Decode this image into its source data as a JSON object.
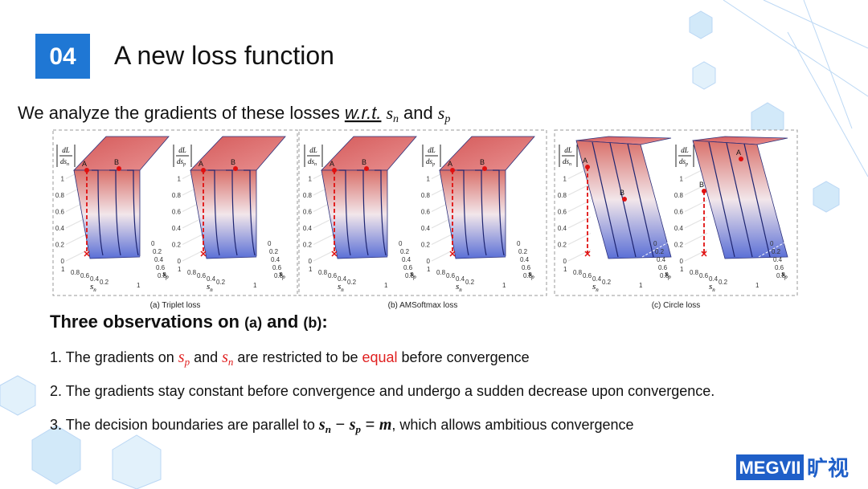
{
  "header": {
    "number": "04",
    "title": "A new loss function"
  },
  "intro": {
    "text": "We analyze the gradients  of these losses ",
    "wrt": "w.r.t.",
    "var1": "s",
    "sub1": "n",
    "conj": "and",
    "var2": "s",
    "sub2": "p"
  },
  "figure": {
    "panels": [
      {
        "caption": "(a) Triplet loss",
        "plots": [
          {
            "num": "dL",
            "den": "ds",
            "sub": "n",
            "yticks": [
              "0",
              "0.2",
              "0.4",
              "0.6",
              "0.8",
              "1"
            ],
            "points": [
              "A",
              "B"
            ],
            "sn_ticks": [
              "1",
              "0.8",
              "0.6",
              "0.4",
              "0.2"
            ],
            "sp_ticks": [
              "0",
              "0.2",
              "0.4",
              "0.6",
              "0.8",
              "1"
            ],
            "xvar": "s",
            "xsub": "n",
            "zvar": "s",
            "zsub": "p"
          },
          {
            "num": "dL",
            "den": "ds",
            "sub": "p",
            "yticks": [
              "0",
              "0.2",
              "0.4",
              "0.6",
              "0.8",
              "1"
            ],
            "points": [
              "A",
              "B"
            ],
            "sn_ticks": [
              "1",
              "0.8",
              "0.6",
              "0.4",
              "0.2"
            ],
            "sp_ticks": [
              "0",
              "0.2",
              "0.4",
              "0.6",
              "0.8",
              "1"
            ],
            "xvar": "s",
            "xsub": "n",
            "zvar": "s",
            "zsub": "p"
          }
        ]
      },
      {
        "caption": "(b) AMSoftmax loss",
        "plots": [
          {
            "num": "dL",
            "den": "ds",
            "sub": "n",
            "yticks": [
              "0",
              "0.2",
              "0.4",
              "0.6",
              "0.8",
              "1"
            ],
            "points": [
              "A",
              "B"
            ],
            "sn_ticks": [
              "1",
              "0.8",
              "0.6",
              "0.4",
              "0.2"
            ],
            "sp_ticks": [
              "0",
              "0.2",
              "0.4",
              "0.6",
              "0.8",
              "1"
            ],
            "xvar": "s",
            "xsub": "n",
            "zvar": "s",
            "zsub": "p"
          },
          {
            "num": "dL",
            "den": "ds",
            "sub": "p",
            "yticks": [
              "0",
              "0.2",
              "0.4",
              "0.6",
              "0.8",
              "1"
            ],
            "points": [
              "A",
              "B"
            ],
            "sn_ticks": [
              "1",
              "0.8",
              "0.6",
              "0.4",
              "0.2"
            ],
            "sp_ticks": [
              "0",
              "0.2",
              "0.4",
              "0.6",
              "0.8",
              "1"
            ],
            "xvar": "s",
            "xsub": "n",
            "zvar": "s",
            "zsub": "p"
          }
        ]
      },
      {
        "caption": "(c) Circle loss",
        "plots": [
          {
            "num": "dL",
            "den": "ds",
            "sub": "n",
            "yticks": [
              "0",
              "0.2",
              "0.4",
              "0.6",
              "0.8",
              "1"
            ],
            "points": [
              "A",
              "B"
            ],
            "sn_ticks": [
              "1",
              "0.8",
              "0.6",
              "0.4",
              "0.2"
            ],
            "sp_ticks": [
              "0",
              "0.2",
              "0.4",
              "0.6",
              "0.8",
              "1"
            ],
            "xvar": "s",
            "xsub": "n",
            "zvar": "s",
            "zsub": "p"
          },
          {
            "num": "dL",
            "den": "ds",
            "sub": "p",
            "yticks": [
              "0",
              "0.2",
              "0.4",
              "0.6",
              "0.8",
              "1"
            ],
            "points": [
              "B",
              "A"
            ],
            "sn_ticks": [
              "1",
              "0.8",
              "0.6",
              "0.4",
              "0.2"
            ],
            "sp_ticks": [
              "0",
              "0.2",
              "0.4",
              "0.6",
              "0.8",
              "1"
            ],
            "xvar": "s",
            "xsub": "n",
            "zvar": "s",
            "zsub": "p"
          }
        ]
      }
    ]
  },
  "observations": {
    "heading": {
      "text": "Three observations on ",
      "a": "(a)",
      "and": " and ",
      "b": "(b)",
      "colon": ":"
    },
    "items": [
      [
        "1. The gradients on ",
        "s",
        "p",
        " and ",
        "s",
        "n",
        " are restricted to be ",
        "equal",
        " before convergence"
      ],
      [
        "2. The gradients stay constant before convergence and undergo a sudden decrease upon convergence."
      ],
      [
        "3. The decision boundaries are parallel to ",
        "s",
        "n",
        " − ",
        "s",
        "p",
        " = ",
        "m",
        ", which allows ambitious convergence"
      ]
    ]
  },
  "logo": {
    "brand": "MEGVII",
    "chinese": "旷视"
  }
}
